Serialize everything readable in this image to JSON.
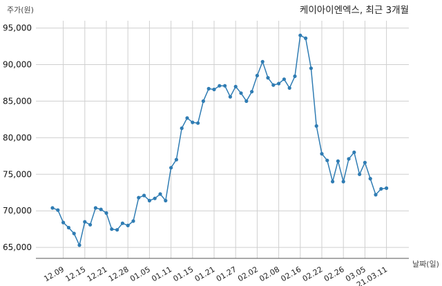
{
  "chart_data": {
    "type": "line",
    "title": "케이아이엔엑스, 최근 3개월",
    "ylabel": "주가(원)",
    "xlabel": "날짜(일)",
    "ylim": [
      63500,
      96000
    ],
    "yticks": [
      65000,
      70000,
      75000,
      80000,
      85000,
      90000,
      95000
    ],
    "ytick_labels": [
      "65,000",
      "70,000",
      "75,000",
      "80,000",
      "85,000",
      "90,000",
      "95,000"
    ],
    "grid": true,
    "line_color": "#2f7cb3",
    "x_tick_labels": [
      {
        "i": 2,
        "label": "12.09"
      },
      {
        "i": 6,
        "label": "12.15"
      },
      {
        "i": 10,
        "label": "12.21"
      },
      {
        "i": 14,
        "label": "12.28"
      },
      {
        "i": 18,
        "label": "01.05"
      },
      {
        "i": 22,
        "label": "01.11"
      },
      {
        "i": 26,
        "label": "01.15"
      },
      {
        "i": 30,
        "label": "01.21"
      },
      {
        "i": 34,
        "label": "01.27"
      },
      {
        "i": 38,
        "label": "02.02"
      },
      {
        "i": 42,
        "label": "02.08"
      },
      {
        "i": 46,
        "label": "02.16"
      },
      {
        "i": 50,
        "label": "02.22"
      },
      {
        "i": 54,
        "label": "02.26"
      },
      {
        "i": 58,
        "label": "03.05"
      },
      {
        "i": 62,
        "label": "21.03.11"
      }
    ],
    "series": [
      {
        "values": [
          70400,
          70100,
          68400,
          67700,
          66900,
          65300,
          68500,
          68100,
          70400,
          70200,
          69700,
          67500,
          67400,
          68300,
          68000,
          68600,
          71800,
          72100,
          71400,
          71700,
          72300,
          71400,
          75900,
          77000,
          81300,
          82700,
          82100,
          82000,
          85000,
          86700,
          86600,
          87100,
          87100,
          85600,
          87000,
          86100,
          85000,
          86300,
          88500,
          90400,
          88200,
          87200,
          87400,
          88000,
          86800,
          88400,
          94000,
          93600,
          89500,
          81600,
          77800,
          76900,
          74000,
          76800,
          74000,
          77100,
          78000,
          75000,
          76600,
          74400,
          72200,
          73000,
          73100
        ]
      }
    ]
  }
}
